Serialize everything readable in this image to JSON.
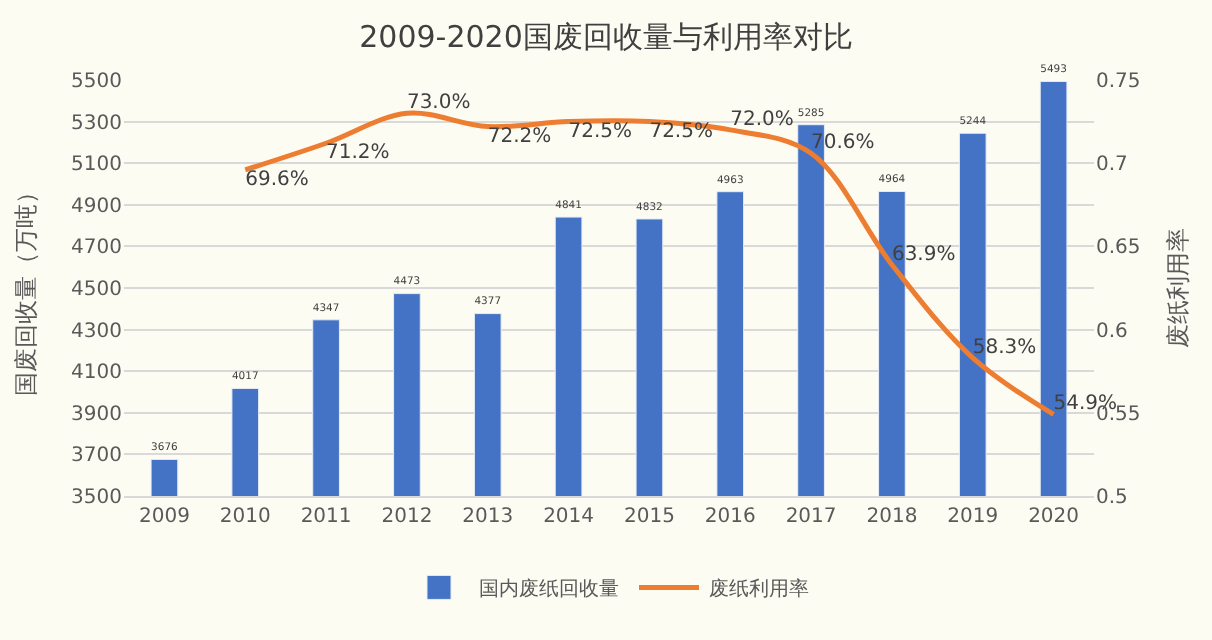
{
  "chart_data": {
    "type": "bar",
    "title": "2009-2020国废回收量与利用率对比",
    "ylabel": "国废回收量（万吨）",
    "y2label": "废纸利用率",
    "categories": [
      "2009",
      "2010",
      "2011",
      "2012",
      "2013",
      "2014",
      "2015",
      "2016",
      "2017",
      "2018",
      "2019",
      "2020"
    ],
    "series": [
      {
        "name": "国内废纸回收量",
        "color": "#4472c4",
        "values": [
          3676,
          4017,
          4347,
          4473,
          4377,
          4841,
          4832,
          4963,
          5285,
          4964,
          5244,
          5493
        ],
        "value_labels": [
          "3676",
          "4017",
          "4347",
          "4473",
          "4377",
          "4841",
          "4832",
          "4963",
          "5285",
          "4964",
          "5244",
          "5493"
        ]
      },
      {
        "name": "废纸利用率",
        "type": "line",
        "axis": "y2",
        "color": "#ed7d31",
        "marker": "none",
        "values": [
          null,
          0.696,
          0.712,
          0.73,
          0.722,
          0.725,
          0.725,
          0.72,
          0.706,
          0.639,
          0.583,
          0.549
        ],
        "value_labels": [
          null,
          "69.6%",
          "71.2%",
          "73.0%",
          "72.2%",
          "72.5%",
          "72.5%",
          "72.0%",
          "70.6%",
          "63.9%",
          "58.3%",
          "54.9%"
        ]
      }
    ],
    "ylim": [
      3500,
      5500
    ],
    "yticks": [
      3500,
      3700,
      3900,
      4100,
      4300,
      4500,
      4700,
      4900,
      5100,
      5300,
      5500
    ],
    "y2lim": [
      0.5,
      0.75
    ],
    "y2ticks": [
      0.5,
      0.55,
      0.6,
      0.65,
      0.7,
      0.75
    ],
    "grid": "y",
    "legend": "bottom"
  }
}
